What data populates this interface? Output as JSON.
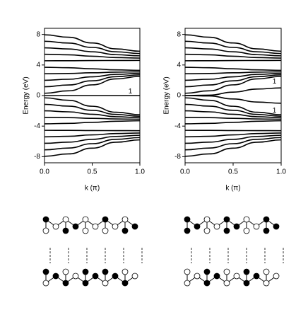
{
  "chart_data": [
    {
      "type": "line",
      "y_label": "Energy (eV)",
      "x_label": "k (π)",
      "color": "#000000",
      "xlim": [
        0,
        1
      ],
      "ylim": [
        -8.8,
        8.8
      ],
      "xticks": [
        {
          "value": 0,
          "label": "0.0"
        },
        {
          "value": 0.5,
          "label": "0.5"
        },
        {
          "value": 1,
          "label": "1.0"
        }
      ],
      "yticks": [
        -8,
        -4,
        0,
        4,
        8
      ],
      "x": [
        0,
        0.25,
        0.5,
        0.75,
        1
      ],
      "series": [
        {
          "values": [
            0.3,
            0.62,
            1.4,
            2.18,
            2.5
          ]
        },
        {
          "values": [
            1.15,
            1.38,
            1.93,
            2.47,
            2.7
          ]
        },
        {
          "values": [
            2.0,
            2.13,
            2.45,
            2.77,
            2.9
          ]
        },
        {
          "values": [
            2.85,
            2.89,
            2.98,
            3.06,
            3.1
          ]
        },
        {
          "values": [
            3.7,
            3.64,
            3.5,
            3.36,
            3.3
          ]
        },
        {
          "values": [
            4.55,
            4.56,
            4.58,
            4.59,
            4.6
          ]
        },
        {
          "values": [
            5.4,
            5.33,
            5.15,
            4.97,
            4.9
          ]
        },
        {
          "values": [
            6.25,
            6.1,
            5.73,
            5.35,
            5.2
          ]
        },
        {
          "values": [
            7.1,
            6.87,
            6.3,
            5.73,
            5.5
          ]
        },
        {
          "values": [
            7.95,
            7.64,
            6.88,
            6.11,
            5.8
          ]
        },
        {
          "values": [
            -0.3,
            -0.62,
            -1.4,
            -2.18,
            -2.5
          ]
        },
        {
          "values": [
            -1.15,
            -1.38,
            -1.93,
            -2.47,
            -2.7
          ]
        },
        {
          "values": [
            -2.0,
            -2.13,
            -2.45,
            -2.77,
            -2.9
          ]
        },
        {
          "values": [
            -2.85,
            -2.89,
            -2.98,
            -3.06,
            -3.1
          ]
        },
        {
          "values": [
            -3.7,
            -3.64,
            -3.5,
            -3.36,
            -3.3
          ]
        },
        {
          "values": [
            -4.55,
            -4.56,
            -4.58,
            -4.59,
            -4.6
          ]
        },
        {
          "values": [
            -5.4,
            -5.33,
            -5.15,
            -4.97,
            -4.9
          ]
        },
        {
          "values": [
            -6.25,
            -6.1,
            -5.73,
            -5.35,
            -5.2
          ]
        },
        {
          "values": [
            -7.1,
            -6.87,
            -6.3,
            -5.73,
            -5.5
          ]
        },
        {
          "values": [
            -7.95,
            -7.64,
            -6.88,
            -6.11,
            -5.8
          ]
        },
        {
          "values": [
            0,
            0,
            0,
            0,
            0
          ]
        }
      ],
      "annotations": [
        {
          "text": "1",
          "x": 0.9,
          "y": 0.5
        }
      ]
    },
    {
      "type": "line",
      "y_label": "Energy (eV)",
      "x_label": "k (π)",
      "color": "#000000",
      "xlim": [
        0,
        1
      ],
      "ylim": [
        -8.8,
        8.8
      ],
      "xticks": [
        {
          "value": 0,
          "label": "0.0"
        },
        {
          "value": 0.5,
          "label": "0.5"
        },
        {
          "value": 1,
          "label": "1.0"
        }
      ],
      "yticks": [
        -8,
        -4,
        0,
        4,
        8
      ],
      "x": [
        0,
        0.25,
        0.5,
        0.75,
        1
      ],
      "series": [
        {
          "values": [
            0.3,
            0.62,
            1.4,
            2.18,
            2.5
          ]
        },
        {
          "values": [
            1.15,
            1.38,
            1.93,
            2.47,
            2.7
          ]
        },
        {
          "values": [
            2.0,
            2.13,
            2.45,
            2.77,
            2.9
          ]
        },
        {
          "values": [
            2.85,
            2.89,
            2.98,
            3.06,
            3.1
          ]
        },
        {
          "values": [
            3.7,
            3.64,
            3.5,
            3.36,
            3.3
          ]
        },
        {
          "values": [
            4.55,
            4.56,
            4.58,
            4.59,
            4.6
          ]
        },
        {
          "values": [
            5.4,
            5.33,
            5.15,
            4.97,
            4.9
          ]
        },
        {
          "values": [
            6.25,
            6.1,
            5.73,
            5.35,
            5.2
          ]
        },
        {
          "values": [
            7.1,
            6.87,
            6.3,
            5.73,
            5.5
          ]
        },
        {
          "values": [
            7.95,
            7.64,
            6.88,
            6.11,
            5.8
          ]
        },
        {
          "values": [
            -0.3,
            -0.62,
            -1.4,
            -2.18,
            -2.5
          ]
        },
        {
          "values": [
            -1.15,
            -1.38,
            -1.93,
            -2.47,
            -2.7
          ]
        },
        {
          "values": [
            -2.0,
            -2.13,
            -2.45,
            -2.77,
            -2.9
          ]
        },
        {
          "values": [
            -2.85,
            -2.89,
            -2.98,
            -3.06,
            -3.1
          ]
        },
        {
          "values": [
            -3.7,
            -3.64,
            -3.5,
            -3.36,
            -3.3
          ]
        },
        {
          "values": [
            -4.55,
            -4.56,
            -4.58,
            -4.59,
            -4.6
          ]
        },
        {
          "values": [
            -5.4,
            -5.33,
            -5.15,
            -4.97,
            -4.9
          ]
        },
        {
          "values": [
            -6.25,
            -6.1,
            -5.73,
            -5.35,
            -5.2
          ]
        },
        {
          "values": [
            -7.1,
            -6.87,
            -6.3,
            -5.73,
            -5.5
          ]
        },
        {
          "values": [
            -7.95,
            -7.64,
            -6.88,
            -6.11,
            -5.8
          ]
        },
        {
          "values": [
            0,
            0.05,
            0.45,
            0.85,
            1.0
          ]
        },
        {
          "values": [
            0,
            -0.05,
            -0.45,
            -0.85,
            -1.0
          ]
        }
      ],
      "annotations": [
        {
          "text": "1",
          "x": 0.93,
          "y": 1.8
        },
        {
          "text": "1",
          "x": 0.93,
          "y": -2.0
        }
      ]
    }
  ]
}
